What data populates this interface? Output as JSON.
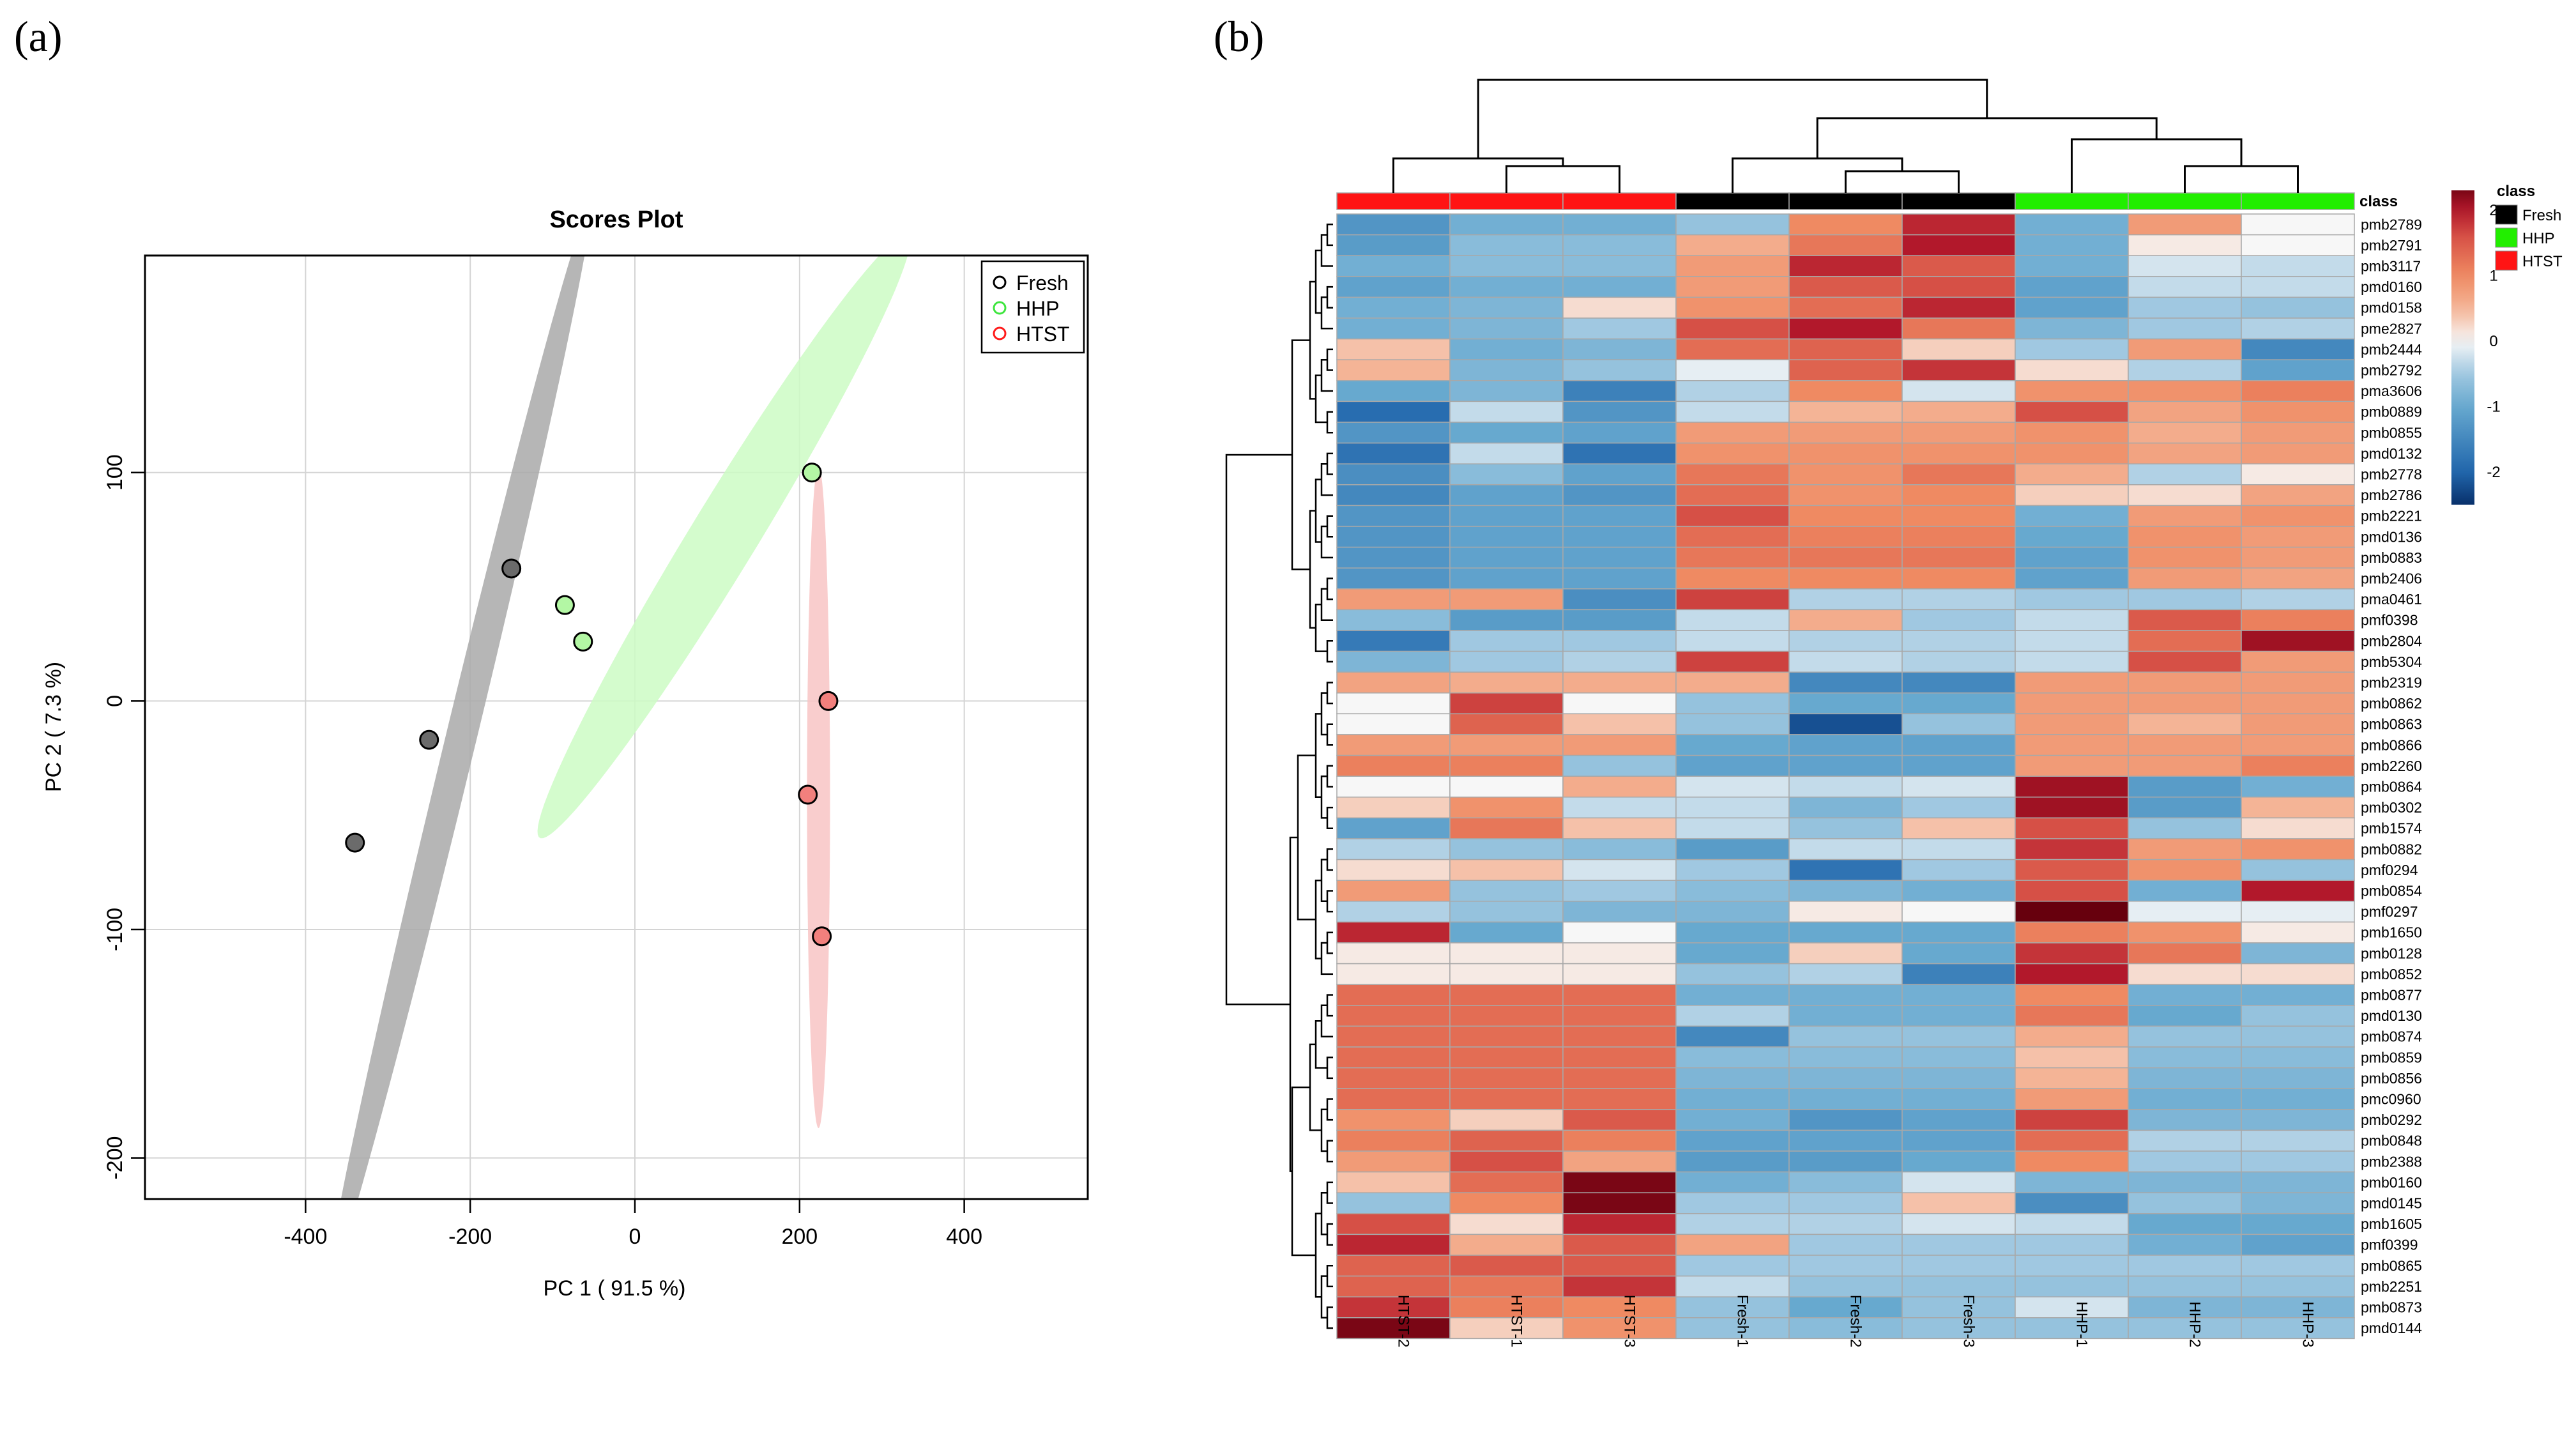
{
  "panels": {
    "a": "(a)",
    "b": "(b)"
  },
  "chart_data": [
    {
      "type": "scatter",
      "title": "Scores Plot",
      "xlabel": "PC 1 ( 91.5 %)",
      "ylabel": "PC 2 ( 7.3 %)",
      "xlim": [
        -595,
        550
      ],
      "ylim": [
        -218,
        195
      ],
      "xticks": [
        -400,
        -200,
        0,
        200,
        400
      ],
      "yticks": [
        -200,
        -100,
        0,
        100
      ],
      "grid": true,
      "legend_position": "top-right",
      "series": [
        {
          "name": "Fresh",
          "color": "#000000",
          "fill": "#6b6b6b",
          "x": [
            -150,
            -250,
            -340
          ],
          "y": [
            58,
            -17,
            -62
          ]
        },
        {
          "name": "HHP",
          "color": "#3ee53e",
          "fill": "#b3f7a4",
          "x": [
            215,
            -85,
            -63
          ],
          "y": [
            100,
            42,
            26
          ]
        },
        {
          "name": "HTST",
          "color": "#ff1a1a",
          "fill": "#f2807d",
          "x": [
            235,
            210,
            227
          ],
          "y": [
            0,
            -41,
            -103
          ]
        }
      ],
      "confidence_ellipses": [
        {
          "group": "Fresh",
          "color": "#a9a9a9",
          "center": [
            -213,
            -19
          ],
          "angle_deg": 56,
          "radius_major": 285,
          "radius_minor": 16
        },
        {
          "group": "HHP",
          "color": "#cdfcc4",
          "center": [
            108,
            72
          ],
          "angle_deg": 30,
          "radius_major": 261,
          "radius_minor": 24
        },
        {
          "group": "HTST",
          "color": "#f8c4c4",
          "center": [
            223,
            -42
          ],
          "angle_deg": 90,
          "radius_major": 145,
          "radius_minor": 14
        }
      ]
    },
    {
      "type": "heatmap",
      "columns": [
        "HTST-2",
        "HTST-1",
        "HTST-3",
        "Fresh-1",
        "Fresh-2",
        "Fresh-3",
        "HHP-1",
        "HHP-2",
        "HHP-3"
      ],
      "column_class": [
        "HTST",
        "HTST",
        "HTST",
        "Fresh",
        "Fresh",
        "Fresh",
        "HHP",
        "HHP",
        "HHP"
      ],
      "class_label": "class",
      "class_legend": {
        "title": "class",
        "items": [
          {
            "name": "Fresh",
            "color": "#000000"
          },
          {
            "name": "HHP",
            "color": "#22ee00"
          },
          {
            "name": "HTST",
            "color": "#ff1414"
          }
        ]
      },
      "colorbar": {
        "min": -2.5,
        "max": 2.3,
        "ticks": [
          "2",
          "1",
          "0",
          "-1",
          "-2"
        ],
        "tick_values": [
          2,
          1,
          0,
          -1,
          -2
        ]
      },
      "rows": [
        "pmb2789",
        "pmb2791",
        "pmb3117",
        "pmd0160",
        "pmd0158",
        "pme2827",
        "pmb2444",
        "pmb2792",
        "pma3606",
        "pmb0889",
        "pmb0855",
        "pmd0132",
        "pmb2778",
        "pmb2786",
        "pmb2221",
        "pmd0136",
        "pmb0883",
        "pmb2406",
        "pma0461",
        "pmf0398",
        "pmb2804",
        "pmb5304",
        "pmb2319",
        "pmb0862",
        "pmb0863",
        "pmb0866",
        "pmb2260",
        "pmb0864",
        "pmb0302",
        "pmb1574",
        "pmb0882",
        "pmf0294",
        "pmb0854",
        "pmf0297",
        "pmb1650",
        "pmb0128",
        "pmb0852",
        "pmb0877",
        "pmd0130",
        "pmb0874",
        "pmb0859",
        "pmb0856",
        "pmc0960",
        "pmb0292",
        "pmb0848",
        "pmb2388",
        "pmb0160",
        "pmd0145",
        "pmb1605",
        "pmf0399",
        "pmb0865",
        "pmb2251",
        "pmb0873",
        "pmd0144"
      ],
      "values": [
        [
          -1.3,
          -0.9,
          -0.9,
          -0.6,
          1.0,
          1.9,
          -0.9,
          0.8,
          0.0
        ],
        [
          -1.2,
          -0.7,
          -0.7,
          0.6,
          1.2,
          2.0,
          -0.9,
          0.1,
          0.0
        ],
        [
          -0.9,
          -0.7,
          -0.7,
          0.8,
          1.9,
          1.5,
          -0.9,
          -0.2,
          -0.3
        ],
        [
          -1.1,
          -0.9,
          -0.9,
          0.8,
          1.5,
          1.6,
          -1.1,
          -0.3,
          -0.3
        ],
        [
          -0.9,
          -0.8,
          0.2,
          0.9,
          1.3,
          1.9,
          -1.1,
          -0.5,
          -0.6
        ],
        [
          -0.9,
          -0.8,
          -0.5,
          1.6,
          2.0,
          1.2,
          -0.8,
          -0.5,
          -0.4
        ],
        [
          0.4,
          -0.9,
          -0.8,
          1.3,
          1.4,
          0.3,
          -0.5,
          0.8,
          -1.5
        ],
        [
          0.5,
          -0.8,
          -0.6,
          -0.1,
          1.4,
          1.8,
          0.2,
          -0.4,
          -1.1
        ],
        [
          -1.0,
          -0.8,
          -1.6,
          -0.4,
          1.0,
          -0.2,
          0.9,
          0.9,
          1.1
        ],
        [
          -1.9,
          -0.3,
          -1.3,
          -0.3,
          0.5,
          0.6,
          1.6,
          0.7,
          0.9
        ],
        [
          -1.3,
          -1.0,
          -1.1,
          0.8,
          0.8,
          0.8,
          0.9,
          0.6,
          0.8
        ],
        [
          -1.8,
          -0.3,
          -1.8,
          0.9,
          0.9,
          0.9,
          0.9,
          0.7,
          0.8
        ],
        [
          -1.4,
          -0.7,
          -1.1,
          1.2,
          0.9,
          1.2,
          0.6,
          -0.4,
          0.1
        ],
        [
          -1.5,
          -1.1,
          -1.3,
          1.3,
          0.9,
          1.0,
          0.3,
          0.2,
          0.7
        ],
        [
          -1.3,
          -1.1,
          -1.1,
          1.6,
          1.0,
          1.0,
          -0.9,
          0.8,
          0.9
        ],
        [
          -1.3,
          -1.1,
          -1.1,
          1.3,
          1.1,
          1.1,
          -1.0,
          0.9,
          0.8
        ],
        [
          -1.3,
          -1.1,
          -1.1,
          1.2,
          1.2,
          1.2,
          -1.1,
          0.9,
          0.8
        ],
        [
          -1.3,
          -1.1,
          -1.1,
          1.0,
          1.0,
          1.0,
          -1.1,
          0.8,
          0.7
        ],
        [
          0.8,
          0.8,
          -1.4,
          1.7,
          -0.4,
          -0.4,
          -0.5,
          -0.5,
          -0.4
        ],
        [
          -0.7,
          -1.2,
          -1.2,
          -0.3,
          0.6,
          -0.5,
          -0.3,
          1.5,
          1.1
        ],
        [
          -1.7,
          -0.5,
          -0.5,
          -0.3,
          -0.4,
          -0.4,
          -0.3,
          1.3,
          2.1
        ],
        [
          -0.8,
          -0.5,
          -0.4,
          1.7,
          -0.3,
          -0.4,
          -0.3,
          1.6,
          0.8
        ],
        [
          0.7,
          0.6,
          0.6,
          0.6,
          -1.5,
          -1.5,
          0.8,
          0.8,
          0.8
        ],
        [
          0.0,
          1.7,
          0.0,
          -0.6,
          -1.0,
          -1.0,
          0.8,
          0.8,
          0.8
        ],
        [
          0.0,
          1.4,
          0.4,
          -0.6,
          -2.2,
          -0.6,
          0.8,
          0.5,
          0.8
        ],
        [
          0.8,
          0.8,
          0.8,
          -1.0,
          -1.1,
          -1.1,
          0.8,
          0.8,
          0.8
        ],
        [
          1.1,
          1.1,
          -0.6,
          -1.1,
          -1.1,
          -1.1,
          0.8,
          0.8,
          1.1
        ],
        [
          0.0,
          0.0,
          0.6,
          -0.2,
          -0.3,
          -0.2,
          2.1,
          -1.2,
          -0.9
        ],
        [
          0.3,
          0.9,
          -0.3,
          -0.3,
          -0.8,
          -0.5,
          2.1,
          -1.2,
          0.5
        ],
        [
          -1.1,
          1.2,
          0.4,
          -0.3,
          -0.6,
          0.4,
          1.6,
          -0.6,
          0.2
        ],
        [
          -0.4,
          -0.6,
          -0.7,
          -1.2,
          -0.3,
          -0.3,
          1.8,
          0.8,
          0.9
        ],
        [
          0.2,
          0.4,
          -0.2,
          -0.5,
          -1.8,
          -0.5,
          1.5,
          0.9,
          -0.6
        ],
        [
          0.8,
          -0.6,
          -0.5,
          -0.7,
          -0.8,
          -0.9,
          1.6,
          -0.9,
          2.0
        ],
        [
          -0.4,
          -0.6,
          -0.8,
          -0.8,
          0.1,
          0.0,
          2.4,
          -0.1,
          -0.1
        ],
        [
          1.9,
          -1.0,
          0.0,
          -1.0,
          -1.0,
          -1.0,
          1.1,
          0.9,
          0.1
        ],
        [
          0.1,
          0.1,
          0.1,
          -1.0,
          0.3,
          -1.0,
          1.8,
          1.2,
          -0.8
        ],
        [
          0.1,
          0.1,
          0.1,
          -0.6,
          -0.4,
          -1.6,
          2.0,
          0.2,
          0.2
        ],
        [
          1.3,
          1.3,
          1.3,
          -0.9,
          -0.9,
          -0.9,
          1.0,
          -0.9,
          -0.9
        ],
        [
          1.3,
          1.3,
          1.3,
          -0.4,
          -0.9,
          -0.9,
          1.2,
          -1.0,
          -0.6
        ],
        [
          1.3,
          1.3,
          1.3,
          -1.5,
          -0.6,
          -0.6,
          0.6,
          -0.6,
          -0.6
        ],
        [
          1.3,
          1.3,
          1.3,
          -0.7,
          -0.7,
          -0.7,
          0.4,
          -0.7,
          -0.7
        ],
        [
          1.3,
          1.3,
          1.3,
          -0.8,
          -0.8,
          -0.8,
          0.5,
          -0.8,
          -0.8
        ],
        [
          1.3,
          1.3,
          1.3,
          -0.9,
          -0.9,
          -0.9,
          0.8,
          -0.9,
          -0.9
        ],
        [
          0.9,
          0.3,
          1.5,
          -0.9,
          -1.3,
          -1.1,
          1.7,
          -0.8,
          -0.8
        ],
        [
          1.1,
          1.4,
          1.1,
          -1.1,
          -1.1,
          -1.1,
          1.3,
          -0.4,
          -0.4
        ],
        [
          0.8,
          1.6,
          0.7,
          -1.2,
          -1.2,
          -1.0,
          1.0,
          -0.5,
          -0.5
        ],
        [
          0.4,
          1.3,
          2.3,
          -0.9,
          -0.7,
          -0.2,
          -0.8,
          -0.8,
          -0.8
        ],
        [
          -0.6,
          1.0,
          2.3,
          -0.5,
          -0.5,
          0.4,
          -1.4,
          -0.6,
          -0.8
        ],
        [
          1.6,
          0.2,
          1.9,
          -0.4,
          -0.4,
          -0.2,
          -0.3,
          -1.0,
          -1.0
        ],
        [
          1.9,
          0.6,
          1.5,
          0.7,
          -0.5,
          -0.5,
          -0.5,
          -0.9,
          -1.1
        ],
        [
          1.4,
          1.5,
          1.5,
          -0.5,
          -0.5,
          -0.5,
          -0.5,
          -0.5,
          -0.5
        ],
        [
          1.4,
          1.2,
          1.8,
          -0.3,
          -0.6,
          -0.6,
          -0.6,
          -0.6,
          -0.6
        ],
        [
          1.8,
          1.1,
          1.0,
          -0.6,
          -1.0,
          -0.6,
          -0.2,
          -0.8,
          -0.8
        ],
        [
          2.3,
          0.3,
          0.9,
          -0.6,
          -0.7,
          -0.6,
          -0.6,
          -0.6,
          -0.6
        ]
      ]
    }
  ]
}
